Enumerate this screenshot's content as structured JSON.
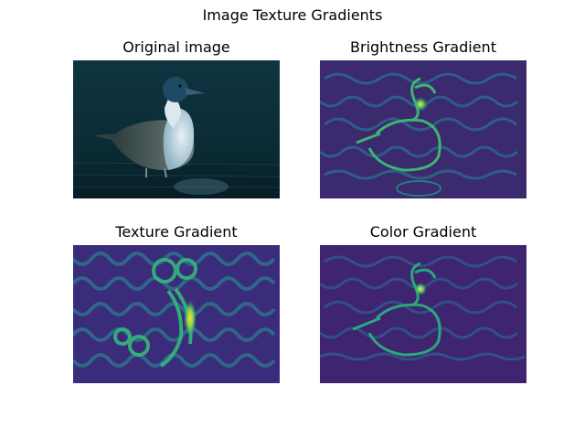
{
  "figure": {
    "title": "Image Texture Gradients"
  },
  "panels": [
    {
      "title": "Original image",
      "kind": "photo",
      "icon": "duck-photo"
    },
    {
      "title": "Brightness Gradient",
      "kind": "gradient-map",
      "colormap": "viridis"
    },
    {
      "title": "Texture Gradient",
      "kind": "gradient-map",
      "colormap": "viridis"
    },
    {
      "title": "Color Gradient",
      "kind": "gradient-map",
      "colormap": "viridis"
    }
  ],
  "colors": {
    "viridis_low": "#440154",
    "viridis_mid": "#21918c",
    "viridis_high": "#fde725",
    "water": "#0b2a33",
    "duck_head": "#1f4a66",
    "duck_chest": "#c9dde6"
  }
}
